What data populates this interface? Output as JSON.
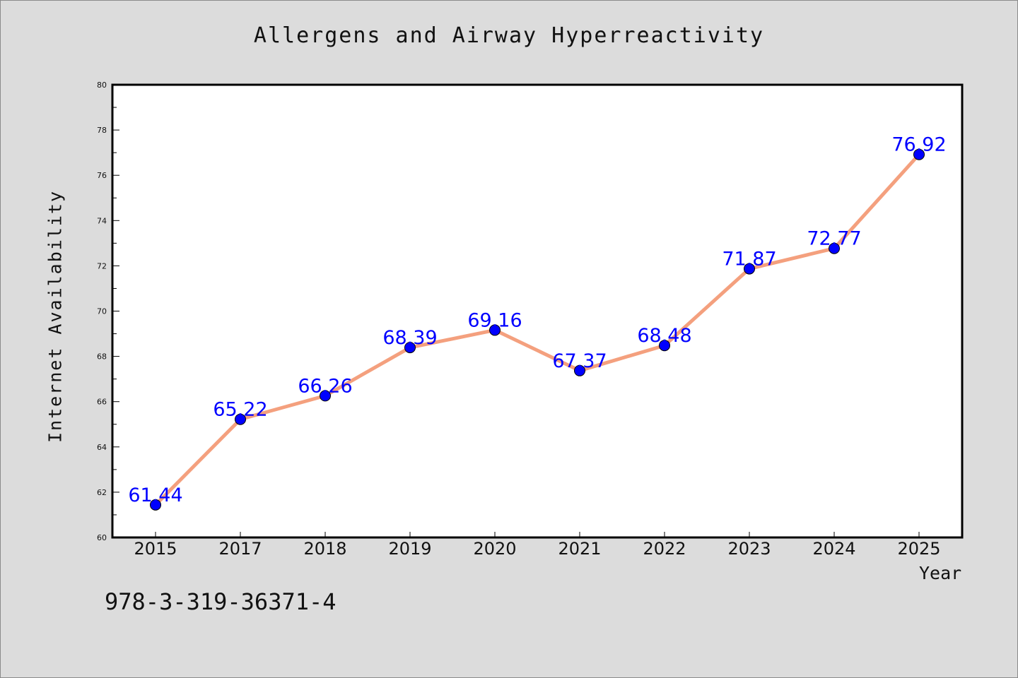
{
  "chart_data": {
    "type": "line",
    "title": "Allergens and Airway Hyperreactivity",
    "xlabel": "Year",
    "ylabel": "Internet Availability",
    "categories": [
      "2015",
      "2017",
      "2018",
      "2019",
      "2020",
      "2021",
      "2022",
      "2023",
      "2024",
      "2025"
    ],
    "series": [
      {
        "values": [
          61.44,
          65.22,
          66.26,
          68.39,
          69.16,
          67.37,
          68.48,
          71.87,
          72.77,
          76.92
        ],
        "labels": [
          "61.44",
          "65.22",
          "66.26",
          "68.39",
          "69.16",
          "67.37",
          "68.48",
          "71.87",
          "72.77",
          "76.92"
        ],
        "line_color": "#f4a07e",
        "marker_color": "#0000ff"
      }
    ],
    "ylim": [
      60,
      80
    ],
    "yticks": [
      "60",
      "62",
      "64",
      "66",
      "68",
      "70",
      "72",
      "74",
      "76",
      "78",
      "80"
    ],
    "grid": false,
    "legend": "none"
  },
  "footnote": "978-3-319-36371-4"
}
